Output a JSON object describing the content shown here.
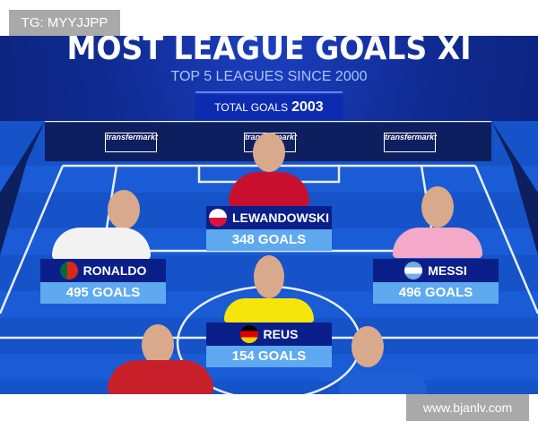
{
  "watermark_top": "TG: MYYJJPP",
  "watermark_bottom": "www.bjanlv.com",
  "graphic": {
    "title": "MOST LEAGUE GOALS XI",
    "subtitle": "TOP 5 LEAGUES SINCE 2000",
    "total_label": "TOTAL GOALS",
    "total_value": "2003",
    "sponsor_logo": "transfermarkt",
    "players": [
      {
        "name": "LEWANDOWSKI",
        "goals": "348 GOALS",
        "flag": "poland",
        "kit": "#c8102e"
      },
      {
        "name": "RONALDO",
        "goals": "495 GOALS",
        "flag": "portugal",
        "kit": "#f2f2f2"
      },
      {
        "name": "MESSI",
        "goals": "496 GOALS",
        "flag": "argentina",
        "kit": "#f5a9c8"
      },
      {
        "name": "REUS",
        "goals": "154 GOALS",
        "flag": "germany",
        "kit": "#f5e50a"
      }
    ],
    "colors": {
      "background": "#0f2a90",
      "name_bar": "#0b1f8a",
      "goals_bar": "#5ea9f0"
    }
  }
}
